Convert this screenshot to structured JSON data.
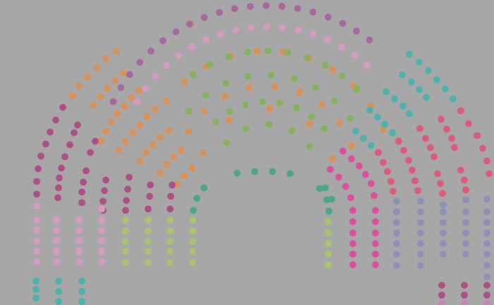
{
  "chart_data": {
    "type": "parliament",
    "title": "",
    "background": "#a7a7a7",
    "colors": {
      "purple": "#a8679f",
      "pink": "#d79bc1",
      "orange": "#d9915a",
      "green": "#84b25f",
      "teal": "#4fb1ac",
      "red": "#de5a7c",
      "magenta": "#dc4f9d",
      "periwinkle": "#8e90b6",
      "olive": "#a8c46f",
      "darkgreen": "#4aa683",
      "plum": "#ac4f86",
      "lavender": "#ce7fbd"
    },
    "groups": [
      {
        "color": "purple",
        "seats": 20
      },
      {
        "color": "pink",
        "seats": 21
      },
      {
        "color": "orange",
        "seats": 66
      },
      {
        "color": "green",
        "seats": 38
      },
      {
        "color": "olive",
        "seats": 30
      },
      {
        "color": "darkgreen",
        "seats": 12
      },
      {
        "color": "teal",
        "seats": 38
      },
      {
        "color": "red",
        "seats": 32
      },
      {
        "color": "magenta",
        "seats": 30
      },
      {
        "color": "periwinkle",
        "seats": 33
      },
      {
        "color": "plum",
        "seats": 31
      },
      {
        "color": "lavender",
        "seats": 6
      }
    ]
  }
}
